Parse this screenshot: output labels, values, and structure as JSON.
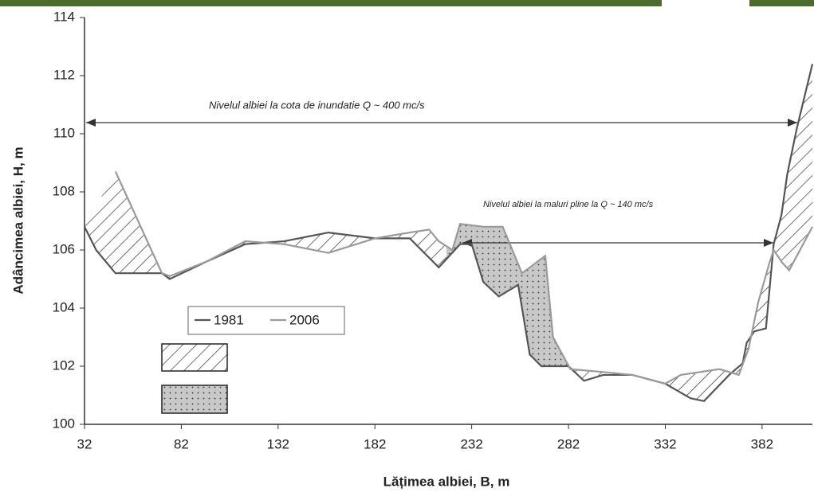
{
  "chart_data": {
    "type": "line",
    "xlabel": "Lățimea albiei, B, m",
    "ylabel": "Adâncimea albiei, H, m",
    "xlim": [
      32,
      408
    ],
    "ylim": [
      100,
      114
    ],
    "xticks": [
      32,
      82,
      132,
      182,
      232,
      282,
      332,
      382
    ],
    "yticks": [
      100,
      102,
      104,
      106,
      108,
      110,
      112,
      114
    ],
    "annotations": [
      "Nivelul albiei la cota de inundatie Q  ~  400 mc/s",
      "Nivelul albiei la maluri pline la Q ~ 140 mc/s"
    ],
    "series": [
      {
        "name": "1981",
        "color": "#555555",
        "x": [
          32,
          38,
          48,
          72,
          76,
          95,
          115,
          135,
          158,
          182,
          200,
          215,
          226,
          232,
          238,
          246,
          256,
          262,
          268,
          282,
          290,
          300,
          315,
          332,
          345,
          352,
          365,
          372,
          374,
          378,
          384,
          388,
          392,
          395,
          400,
          408
        ],
        "values": [
          106.8,
          106.0,
          105.2,
          105.2,
          105.0,
          105.6,
          106.2,
          106.3,
          106.6,
          106.4,
          106.4,
          105.4,
          106.2,
          106.2,
          104.9,
          104.4,
          104.8,
          102.4,
          102.0,
          102.0,
          101.5,
          101.7,
          101.7,
          101.4,
          100.9,
          100.8,
          101.7,
          102.1,
          102.8,
          103.2,
          103.3,
          106.2,
          107.2,
          108.6,
          110.2,
          112.4
        ]
      },
      {
        "name": "2006",
        "color": "#9a9a9a",
        "x": [
          48,
          72,
          76,
          95,
          115,
          135,
          158,
          182,
          200,
          210,
          215,
          222,
          226,
          238,
          248,
          258,
          270,
          274,
          283,
          300,
          315,
          332,
          340,
          360,
          370,
          375,
          380,
          386,
          388,
          392,
          396,
          400,
          408
        ],
        "values": [
          108.7,
          105.2,
          105.1,
          105.6,
          106.3,
          106.2,
          105.9,
          106.4,
          106.6,
          106.7,
          106.3,
          106.0,
          106.9,
          106.8,
          106.8,
          105.2,
          105.8,
          103.0,
          101.9,
          101.8,
          101.7,
          101.4,
          101.7,
          101.9,
          101.7,
          102.6,
          104.2,
          105.6,
          106.0,
          105.6,
          105.3,
          105.8,
          106.8
        ]
      }
    ]
  }
}
